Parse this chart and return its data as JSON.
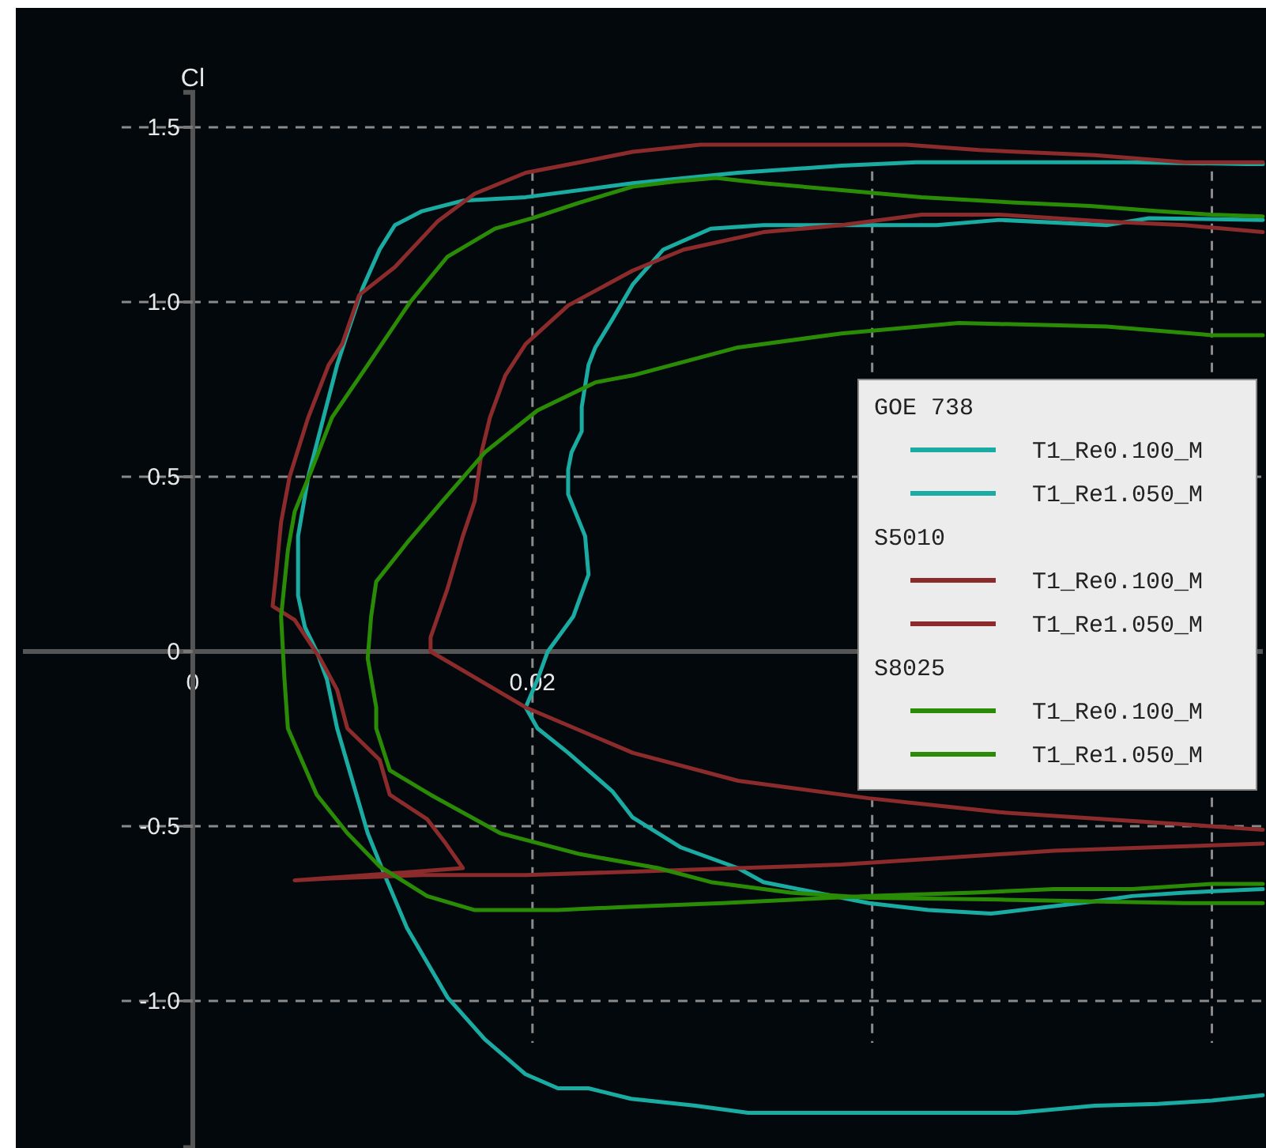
{
  "chart_data": {
    "type": "line",
    "ylabel": "Cl",
    "xlim": [
      -0.01,
      0.063
    ],
    "ylim": [
      -1.42,
      1.6
    ],
    "xticks": [
      0,
      0.02,
      {
        "value": 0.04,
        "label": null
      },
      {
        "value": 0.06,
        "label": null
      }
    ],
    "yticks": [
      {
        "value": -1,
        "label": "-1.0"
      },
      -0.5,
      0,
      0.5,
      {
        "value": 1,
        "label": "1.0"
      },
      1.5
    ],
    "grid": true,
    "legend": "right",
    "line_style": "solid",
    "marker": "none",
    "annotations": [
      "GOE 738",
      "S5010",
      "S8025"
    ],
    "series": [
      {
        "name": "T1_Re0.100_M",
        "color": "#1aaca2",
        "x": [
          0.063,
          0.0584,
          0.0553,
          0.0531,
          0.0488,
          0.047,
          0.0433,
          0.0398,
          0.0367,
          0.0336,
          0.0321,
          0.0287,
          0.0259,
          0.0247,
          0.0221,
          0.0203,
          0.0196,
          0.0203,
          0.0209,
          0.0224,
          0.0233,
          0.0231,
          0.0221,
          0.0221,
          0.0223,
          0.0229,
          0.0229,
          0.0233,
          0.0237,
          0.0247,
          0.0259,
          0.0277,
          0.0305,
          0.0336,
          0.0438,
          0.0475,
          0.0538,
          0.0563,
          0.063
        ],
        "values": [
          -0.68,
          -0.69,
          -0.7,
          -0.715,
          -0.74,
          -0.75,
          -0.74,
          -0.72,
          -0.69,
          -0.66,
          -0.62,
          -0.56,
          -0.475,
          -0.4,
          -0.29,
          -0.22,
          -0.16,
          -0.08,
          0,
          0.1,
          0.22,
          0.33,
          0.45,
          0.52,
          0.57,
          0.63,
          0.7,
          0.82,
          0.87,
          0.95,
          1.05,
          1.15,
          1.21,
          1.22,
          1.22,
          1.235,
          1.22,
          1.24,
          1.235
        ]
      },
      {
        "name": "T1_Re1.050_M",
        "color": "#1aaca2",
        "x": [
          0.063,
          0.06,
          0.0568,
          0.0531,
          0.0485,
          0.0327,
          0.0296,
          0.0258,
          0.0233,
          0.0215,
          0.0196,
          0.0172,
          0.015,
          0.0126,
          0.0113,
          0.0103,
          0.0094,
          0.0085,
          0.0079,
          0.0073,
          0.0066,
          0.0062,
          0.0062,
          0.0068,
          0.0077,
          0.0085,
          0.0091,
          0.01,
          0.011,
          0.0119,
          0.0135,
          0.0159,
          0.0196,
          0.0259,
          0.0321,
          0.0382,
          0.0426,
          0.0553,
          0.062,
          0.063
        ],
        "values": [
          -1.27,
          -1.285,
          -1.295,
          -1.3,
          -1.32,
          -1.32,
          -1.3,
          -1.28,
          -1.25,
          -1.25,
          -1.21,
          -1.11,
          -0.99,
          -0.79,
          -0.64,
          -0.52,
          -0.37,
          -0.22,
          -0.08,
          0,
          0.07,
          0.16,
          0.33,
          0.5,
          0.67,
          0.82,
          0.91,
          1.04,
          1.15,
          1.22,
          1.26,
          1.29,
          1.3,
          1.34,
          1.37,
          1.39,
          1.4,
          1.4,
          1.395,
          1.395
        ]
      },
      {
        "name": "T1_Re0.100_M",
        "color": "#8b2b2b",
        "x": [
          0.063,
          0.0568,
          0.0475,
          0.0398,
          0.0321,
          0.0259,
          0.0196,
          0.014,
          0.014,
          0.015,
          0.0159,
          0.0166,
          0.017,
          0.0175,
          0.0184,
          0.0196,
          0.0221,
          0.0259,
          0.0289,
          0.0336,
          0.0382,
          0.0429,
          0.0475,
          0.0538,
          0.0584,
          0.063
        ],
        "values": [
          -0.51,
          -0.49,
          -0.46,
          -0.42,
          -0.37,
          -0.29,
          -0.16,
          0,
          0.04,
          0.18,
          0.33,
          0.43,
          0.57,
          0.67,
          0.79,
          0.88,
          0.99,
          1.09,
          1.15,
          1.2,
          1.22,
          1.25,
          1.25,
          1.23,
          1.22,
          1.2
        ]
      },
      {
        "name": "T1_Re1.050_M",
        "color": "#8b2b2b",
        "x": [
          0.063,
          0.0568,
          0.0507,
          0.0445,
          0.0382,
          0.0321,
          0.0259,
          0.0196,
          0.0135,
          0.0079,
          0.006,
          0.0159,
          0.0149,
          0.0138,
          0.0116,
          0.011,
          0.0091,
          0.0085,
          0.0075,
          0.006,
          0.0047,
          0.0049,
          0.0052,
          0.0057,
          0.0068,
          0.008,
          0.0088,
          0.0098,
          0.0119,
          0.0144,
          0.0166,
          0.0196,
          0.0228,
          0.0259,
          0.0299,
          0.042,
          0.0463,
          0.0531,
          0.0584,
          0.063
        ],
        "values": [
          -0.55,
          -0.56,
          -0.57,
          -0.59,
          -0.61,
          -0.62,
          -0.63,
          -0.64,
          -0.64,
          -0.65,
          -0.655,
          -0.62,
          -0.55,
          -0.48,
          -0.41,
          -0.31,
          -0.22,
          -0.11,
          -0.02,
          0.09,
          0.13,
          0.22,
          0.37,
          0.5,
          0.67,
          0.82,
          0.88,
          1.02,
          1.1,
          1.23,
          1.31,
          1.37,
          1.4,
          1.43,
          1.45,
          1.45,
          1.435,
          1.42,
          1.4,
          1.4
        ]
      },
      {
        "name": "T1_Re0.100_M",
        "color": "#2a8c06",
        "x": [
          0.063,
          0.0584,
          0.0475,
          0.0398,
          0.0352,
          0.0305,
          0.0274,
          0.0228,
          0.0181,
          0.014,
          0.0116,
          0.0108,
          0.0108,
          0.0103,
          0.0105,
          0.0108,
          0.0126,
          0.0147,
          0.0172,
          0.0203,
          0.0237,
          0.0259,
          0.0321,
          0.0382,
          0.0451,
          0.0538,
          0.06,
          0.063
        ],
        "values": [
          -0.72,
          -0.72,
          -0.71,
          -0.705,
          -0.69,
          -0.66,
          -0.62,
          -0.58,
          -0.52,
          -0.41,
          -0.34,
          -0.22,
          -0.16,
          -0.02,
          0.1,
          0.2,
          0.31,
          0.43,
          0.57,
          0.69,
          0.77,
          0.79,
          0.87,
          0.91,
          0.94,
          0.93,
          0.905,
          0.905
        ]
      },
      {
        "name": "T1_Re1.050_M",
        "color": "#2a8c06",
        "x": [
          0.063,
          0.06,
          0.0553,
          0.0507,
          0.046,
          0.0398,
          0.0312,
          0.0259,
          0.0215,
          0.0166,
          0.0138,
          0.011,
          0.0091,
          0.0073,
          0.0056,
          0.0054,
          0.0052,
          0.0056,
          0.006,
          0.007,
          0.0082,
          0.0103,
          0.0128,
          0.015,
          0.0178,
          0.02,
          0.0228,
          0.0259,
          0.0284,
          0.0308,
          0.0336,
          0.0382,
          0.0429,
          0.0482,
          0.0528,
          0.0568,
          0.06,
          0.063
        ],
        "values": [
          -0.665,
          -0.665,
          -0.68,
          -0.68,
          -0.69,
          -0.7,
          -0.72,
          -0.73,
          -0.74,
          -0.74,
          -0.7,
          -0.615,
          -0.52,
          -0.41,
          -0.22,
          -0.08,
          0.1,
          0.29,
          0.4,
          0.52,
          0.67,
          0.82,
          1.0,
          1.13,
          1.21,
          1.24,
          1.285,
          1.33,
          1.345,
          1.355,
          1.34,
          1.32,
          1.3,
          1.285,
          1.275,
          1.26,
          1.25,
          1.245
        ]
      }
    ]
  }
}
